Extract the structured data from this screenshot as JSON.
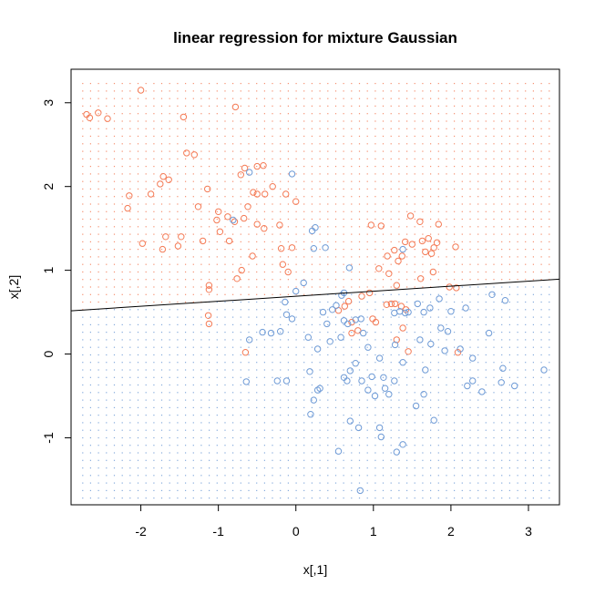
{
  "chart_data": {
    "type": "scatter",
    "title": "linear regression for mixture Gaussian",
    "xlabel": "x[,1]",
    "ylabel": "x[,2]",
    "xlim": [
      -2.9,
      3.4
    ],
    "ylim": [
      -1.8,
      3.4
    ],
    "xticks": [
      -2,
      -1,
      0,
      1,
      2,
      3
    ],
    "yticks": [
      -1,
      0,
      1,
      2,
      3
    ],
    "xtick_labels": [
      "-2",
      "-1",
      "0",
      "1",
      "2",
      "3"
    ],
    "ytick_labels": [
      "-1",
      "0",
      "1",
      "2",
      "3"
    ],
    "colors": {
      "orange": "#f47b56",
      "blue": "#6f9bd6",
      "line": "#000000",
      "frame": "#000000"
    },
    "decision_line": {
      "slope": 0.06,
      "intercept": 0.69
    },
    "grid": {
      "x_start": -2.75,
      "x_end": 3.35,
      "x_step": 0.102,
      "y_start": -1.72,
      "y_end": 3.3,
      "y_step": 0.09
    },
    "series": [
      {
        "color": "#f47b56",
        "points": [
          [
            -2.7,
            2.86
          ],
          [
            -2.66,
            2.82
          ],
          [
            -2.55,
            2.88
          ],
          [
            -2.43,
            2.81
          ],
          [
            -2.0,
            3.15
          ],
          [
            -0.78,
            2.95
          ],
          [
            -1.45,
            2.83
          ],
          [
            -1.41,
            2.4
          ],
          [
            -1.31,
            2.38
          ],
          [
            -2.15,
            1.89
          ],
          [
            -2.17,
            1.74
          ],
          [
            -1.98,
            1.32
          ],
          [
            -1.87,
            1.91
          ],
          [
            -1.71,
            2.12
          ],
          [
            -1.75,
            2.03
          ],
          [
            -1.64,
            2.08
          ],
          [
            -1.72,
            1.25
          ],
          [
            -1.68,
            1.4
          ],
          [
            -1.52,
            1.29
          ],
          [
            -1.48,
            1.4
          ],
          [
            -1.26,
            1.76
          ],
          [
            -1.14,
            1.97
          ],
          [
            -1.2,
            1.35
          ],
          [
            -1.02,
            1.6
          ],
          [
            -1.0,
            1.7
          ],
          [
            -0.98,
            1.46
          ],
          [
            -0.86,
            1.35
          ],
          [
            -0.88,
            1.64
          ],
          [
            -0.79,
            1.58
          ],
          [
            -0.71,
            2.14
          ],
          [
            -0.66,
            2.22
          ],
          [
            -0.5,
            2.24
          ],
          [
            -0.42,
            2.25
          ],
          [
            -0.5,
            1.91
          ],
          [
            -0.4,
            1.91
          ],
          [
            -0.62,
            1.76
          ],
          [
            -0.55,
            1.93
          ],
          [
            -0.3,
            2.0
          ],
          [
            -0.13,
            1.91
          ],
          [
            0.0,
            1.82
          ],
          [
            -0.67,
            1.62
          ],
          [
            -0.5,
            1.55
          ],
          [
            -0.41,
            1.5
          ],
          [
            -0.21,
            1.54
          ],
          [
            -0.19,
            1.26
          ],
          [
            -0.05,
            1.27
          ],
          [
            -0.7,
            1.0
          ],
          [
            -0.56,
            1.17
          ],
          [
            -0.17,
            1.07
          ],
          [
            -0.1,
            0.98
          ],
          [
            -1.12,
            0.82
          ],
          [
            -1.12,
            0.77
          ],
          [
            -1.13,
            0.46
          ],
          [
            -1.12,
            0.36
          ],
          [
            -0.76,
            0.9
          ],
          [
            -0.65,
            0.02
          ],
          [
            0.97,
            1.54
          ],
          [
            1.1,
            1.53
          ],
          [
            1.27,
            1.24
          ],
          [
            1.18,
            1.17
          ],
          [
            1.32,
            1.11
          ],
          [
            1.37,
            1.17
          ],
          [
            1.41,
            1.34
          ],
          [
            1.48,
            1.65
          ],
          [
            1.6,
            1.58
          ],
          [
            1.5,
            1.31
          ],
          [
            1.63,
            1.35
          ],
          [
            1.71,
            1.38
          ],
          [
            1.78,
            1.27
          ],
          [
            1.75,
            1.2
          ],
          [
            1.67,
            1.22
          ],
          [
            1.82,
            1.33
          ],
          [
            1.84,
            1.55
          ],
          [
            2.06,
            1.28
          ],
          [
            1.07,
            1.02
          ],
          [
            1.2,
            0.96
          ],
          [
            1.3,
            0.82
          ],
          [
            1.61,
            0.9
          ],
          [
            1.77,
            0.98
          ],
          [
            1.98,
            0.8
          ],
          [
            2.07,
            0.79
          ],
          [
            0.55,
            0.52
          ],
          [
            0.63,
            0.57
          ],
          [
            0.68,
            0.63
          ],
          [
            0.72,
            0.38
          ],
          [
            0.8,
            0.28
          ],
          [
            0.85,
            0.69
          ],
          [
            0.95,
            0.73
          ],
          [
            0.99,
            0.42
          ],
          [
            1.03,
            0.38
          ],
          [
            1.17,
            0.59
          ],
          [
            1.23,
            0.6
          ],
          [
            1.28,
            0.6
          ],
          [
            1.36,
            0.57
          ],
          [
            1.42,
            0.53
          ],
          [
            1.38,
            0.31
          ],
          [
            1.3,
            0.17
          ],
          [
            1.45,
            0.03
          ],
          [
            0.72,
            0.25
          ],
          [
            2.09,
            0.02
          ]
        ]
      },
      {
        "color": "#6f9bd6",
        "points": [
          [
            -0.05,
            2.15
          ],
          [
            -0.6,
            2.17
          ],
          [
            -0.81,
            1.6
          ],
          [
            0.21,
            1.47
          ],
          [
            0.25,
            1.51
          ],
          [
            0.23,
            1.26
          ],
          [
            0.38,
            1.27
          ],
          [
            0.0,
            0.75
          ],
          [
            0.1,
            0.85
          ],
          [
            -0.14,
            0.62
          ],
          [
            -0.12,
            0.47
          ],
          [
            -0.05,
            0.42
          ],
          [
            -0.2,
            0.27
          ],
          [
            -0.32,
            0.25
          ],
          [
            -0.43,
            0.26
          ],
          [
            -0.6,
            0.17
          ],
          [
            -0.64,
            -0.33
          ],
          [
            -0.24,
            -0.32
          ],
          [
            -0.12,
            -0.32
          ],
          [
            0.16,
            0.2
          ],
          [
            0.18,
            -0.21
          ],
          [
            0.28,
            -0.43
          ],
          [
            0.31,
            -0.41
          ],
          [
            0.23,
            -0.55
          ],
          [
            0.19,
            -0.72
          ],
          [
            0.28,
            0.06
          ],
          [
            0.35,
            0.5
          ],
          [
            0.4,
            0.36
          ],
          [
            0.47,
            0.53
          ],
          [
            0.44,
            0.15
          ],
          [
            0.52,
            0.58
          ],
          [
            0.58,
            0.2
          ],
          [
            0.59,
            0.7
          ],
          [
            0.62,
            0.4
          ],
          [
            0.69,
            1.03
          ],
          [
            0.67,
            0.36
          ],
          [
            0.77,
            0.41
          ],
          [
            0.84,
            0.42
          ],
          [
            0.87,
            0.25
          ],
          [
            0.93,
            0.08
          ],
          [
            0.62,
            -0.28
          ],
          [
            0.66,
            -0.32
          ],
          [
            0.7,
            -0.2
          ],
          [
            0.77,
            -0.11
          ],
          [
            0.85,
            -0.32
          ],
          [
            0.93,
            -0.43
          ],
          [
            0.98,
            -0.27
          ],
          [
            1.02,
            -0.5
          ],
          [
            1.08,
            -0.05
          ],
          [
            1.13,
            -0.28
          ],
          [
            1.15,
            -0.41
          ],
          [
            1.2,
            -0.48
          ],
          [
            1.27,
            -0.32
          ],
          [
            1.28,
            0.11
          ],
          [
            1.38,
            -0.1
          ],
          [
            1.41,
            0.49
          ],
          [
            1.45,
            0.5
          ],
          [
            1.34,
            0.51
          ],
          [
            1.27,
            0.49
          ],
          [
            1.57,
            0.6
          ],
          [
            1.6,
            0.17
          ],
          [
            1.65,
            0.5
          ],
          [
            1.73,
            0.55
          ],
          [
            1.67,
            -0.19
          ],
          [
            1.65,
            -0.48
          ],
          [
            1.74,
            0.12
          ],
          [
            1.78,
            -0.79
          ],
          [
            1.85,
            0.66
          ],
          [
            1.87,
            0.31
          ],
          [
            1.92,
            0.04
          ],
          [
            1.96,
            0.27
          ],
          [
            2.0,
            0.51
          ],
          [
            2.12,
            0.06
          ],
          [
            2.19,
            0.55
          ],
          [
            2.28,
            -0.05
          ],
          [
            2.21,
            -0.38
          ],
          [
            2.28,
            -0.32
          ],
          [
            2.4,
            -0.45
          ],
          [
            2.49,
            0.25
          ],
          [
            2.53,
            0.71
          ],
          [
            2.7,
            0.64
          ],
          [
            2.67,
            -0.17
          ],
          [
            2.65,
            -0.34
          ],
          [
            2.82,
            -0.38
          ],
          [
            3.2,
            -0.19
          ],
          [
            1.38,
            1.25
          ],
          [
            0.55,
            -1.16
          ],
          [
            0.7,
            -0.8
          ],
          [
            0.81,
            -0.88
          ],
          [
            1.08,
            -0.88
          ],
          [
            1.1,
            -0.99
          ],
          [
            1.3,
            -1.17
          ],
          [
            1.38,
            -1.08
          ],
          [
            1.55,
            -0.62
          ],
          [
            0.83,
            -1.63
          ],
          [
            0.62,
            0.73
          ]
        ]
      }
    ]
  }
}
